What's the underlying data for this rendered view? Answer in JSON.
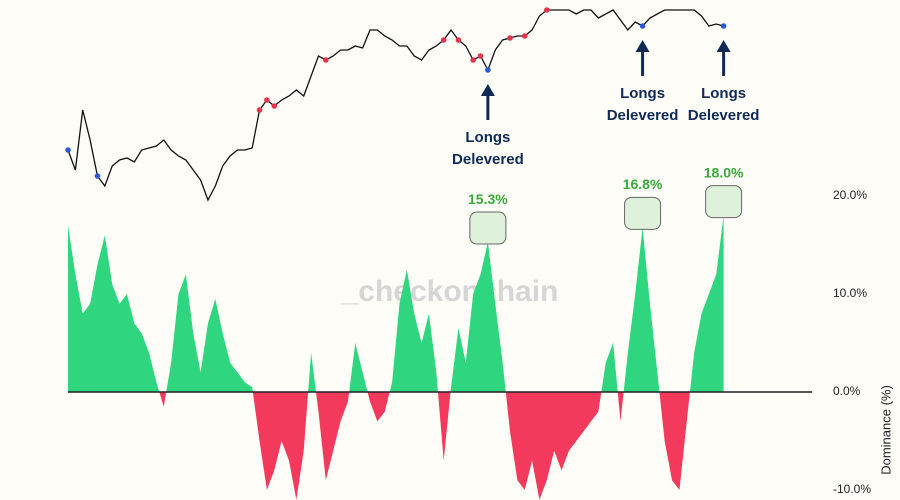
{
  "chart_data": {
    "type": "price-dominance",
    "watermark": "_checkonchain",
    "xlim": [
      0,
      101
    ],
    "price": {
      "color": "#111111",
      "ylim": [
        0,
        105
      ],
      "values": [
        30,
        20,
        50,
        35,
        17,
        12,
        22,
        25,
        26,
        24,
        30,
        31,
        32,
        35,
        30,
        27,
        25,
        20,
        15,
        5,
        12,
        22,
        27,
        30,
        30,
        31,
        50,
        55,
        52,
        55,
        57,
        60,
        57,
        67,
        77,
        75,
        77,
        80,
        80,
        82,
        81,
        90,
        90,
        87,
        85,
        82,
        82,
        77,
        75,
        80,
        82,
        85,
        90,
        85,
        82,
        75,
        77,
        70,
        80,
        85,
        86,
        87,
        87,
        90,
        97,
        100,
        100,
        100,
        100,
        98,
        100,
        100,
        96,
        98,
        100,
        95,
        90,
        94,
        92,
        96,
        98,
        100,
        100,
        100,
        100,
        100,
        97,
        92,
        93,
        92
      ],
      "markers": [
        {
          "color": "#e8334a",
          "indices": [
            26,
            27,
            28,
            35,
            51,
            53,
            55,
            56,
            60,
            62,
            65
          ]
        },
        {
          "color": "#2a5bd7",
          "indices": [
            0,
            4,
            57,
            78,
            89
          ]
        }
      ]
    },
    "dominance": {
      "axis_label": "Dominance (%)",
      "positive_color": "#2fd67f",
      "negative_color": "#f43a5c",
      "ylim": [
        -11,
        22
      ],
      "yticks": [
        {
          "value": 20,
          "label": "20.0%"
        },
        {
          "value": 10,
          "label": "10.0%"
        },
        {
          "value": 0,
          "label": "0.0%"
        },
        {
          "value": -10,
          "label": "-10.0%"
        }
      ],
      "values": [
        17,
        12,
        8,
        9,
        13,
        16,
        11,
        9,
        10,
        7,
        6,
        4,
        1,
        -1.5,
        3,
        10,
        12,
        6,
        2,
        7,
        9.5,
        6,
        3,
        2,
        1,
        0.5,
        -5,
        -10,
        -8,
        -5,
        -7,
        -11,
        -6,
        4,
        -2,
        -9,
        -6,
        -3,
        -1,
        5,
        2,
        -1,
        -3,
        -2,
        1,
        9,
        12.5,
        8,
        5,
        8,
        2,
        -7,
        0.5,
        6.5,
        3,
        10,
        12,
        15.3,
        9,
        3,
        -4,
        -9,
        -10,
        -7,
        -11,
        -9,
        -6,
        -8,
        -6,
        -5,
        -4,
        -3,
        -2,
        3,
        5,
        -3,
        4,
        10,
        16.8,
        9,
        2,
        -5,
        -9,
        -10,
        -3,
        4,
        8,
        10,
        12,
        18
      ]
    },
    "annotations": [
      {
        "index": 57,
        "lines": [
          "Longs",
          "Delevered"
        ]
      },
      {
        "index": 78,
        "lines": [
          "Longs",
          "Delevered"
        ]
      },
      {
        "index": 89,
        "lines": [
          "Longs",
          "Delevered"
        ]
      }
    ],
    "peaks": [
      {
        "index": 57,
        "value": 15.3,
        "label": "15.3%"
      },
      {
        "index": 78,
        "value": 16.8,
        "label": "16.8%"
      },
      {
        "index": 89,
        "value": 18.0,
        "label": "18.0%"
      }
    ]
  }
}
